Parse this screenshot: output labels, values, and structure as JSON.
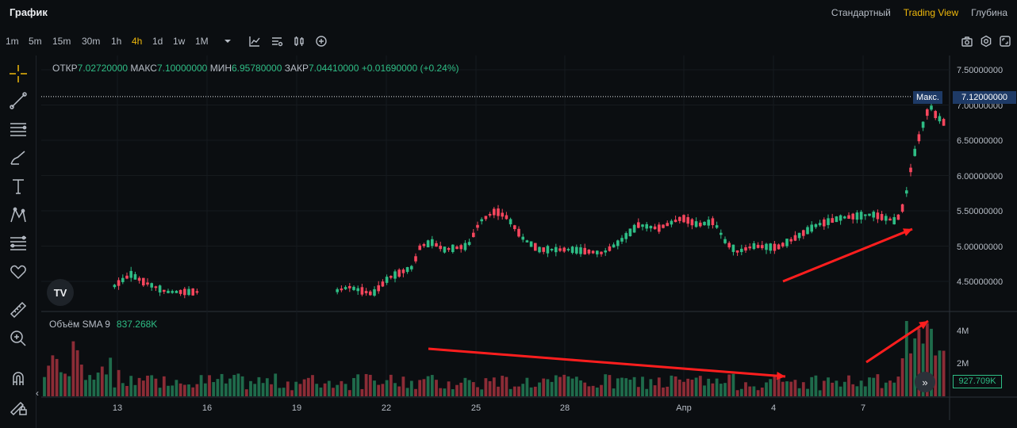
{
  "header": {
    "title": "График",
    "views": [
      {
        "label": "Стандартный",
        "active": false
      },
      {
        "label": "Trading View",
        "active": true
      },
      {
        "label": "Глубина",
        "active": false
      }
    ]
  },
  "toolbar": {
    "timeframes": [
      "1m",
      "5m",
      "15m",
      "30m",
      "1h",
      "4h",
      "1d",
      "1w",
      "1M"
    ],
    "active_timeframe": "4h"
  },
  "ohlc": {
    "open_label": "ОТКР",
    "open": "7.02720000",
    "high_label": "МАКС",
    "high": "7.10000000",
    "low_label": "МИН",
    "low": "6.95780000",
    "close_label": "ЗАКР",
    "close": "7.04410000",
    "change": "+0.01690000",
    "change_pct": "(+0.24%)"
  },
  "volume": {
    "label": "Объём SMA 9",
    "value": "837.268K",
    "current": "927.709K",
    "ticks": [
      "4M",
      "2M"
    ]
  },
  "price_axis": {
    "ticks": [
      "7.50000000",
      "7.00000000",
      "6.50000000",
      "6.00000000",
      "5.50000000",
      "5.00000000",
      "4.50000000"
    ]
  },
  "max_marker": {
    "label": "Макс.",
    "price": "7.12000000"
  },
  "time_axis": {
    "labels": [
      "13",
      "16",
      "19",
      "22",
      "25",
      "28",
      "Апр",
      "4",
      "7"
    ]
  },
  "logo_text": "TV",
  "colors": {
    "up": "#2ebd85",
    "down": "#f6465d",
    "accent": "#f0b90b",
    "arrow": "#ff1e1e"
  },
  "chart_data": {
    "type": "candlestick",
    "price_range": [
      4.3,
      7.7
    ],
    "volume_range": [
      0,
      5000000
    ]
  }
}
